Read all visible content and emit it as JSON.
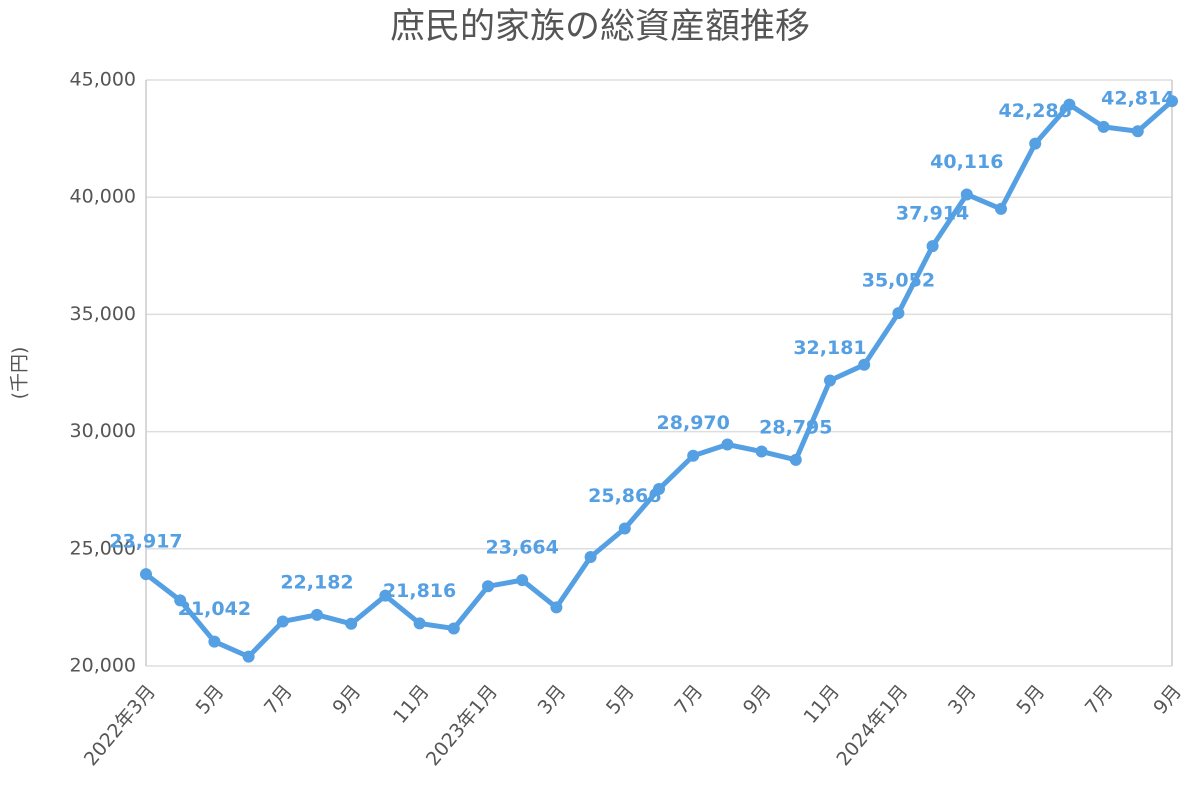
{
  "chart_data": {
    "type": "line",
    "title": "庶民的家族の総資産額推移",
    "y_label": "(千円)",
    "categories": [
      "2022年3月",
      null,
      "5月",
      null,
      "7月",
      null,
      "9月",
      null,
      "11月",
      null,
      "2023年1月",
      null,
      "3月",
      null,
      "5月",
      null,
      "7月",
      null,
      "9月",
      null,
      "11月",
      null,
      "2024年1月",
      null,
      "3月",
      null,
      "5月",
      null,
      "7月",
      null,
      "9月"
    ],
    "series": [
      {
        "name": "総資産額",
        "color": "#559fe3",
        "values": [
          23917,
          22800,
          21042,
          20400,
          21900,
          22182,
          21800,
          23000,
          21816,
          21600,
          23400,
          23664,
          22500,
          24650,
          25866,
          27550,
          28970,
          29450,
          29150,
          28795,
          32181,
          32850,
          35052,
          37914,
          40116,
          39500,
          42286,
          43950,
          43000,
          42814,
          44100
        ],
        "value_labels": [
          "23,917",
          null,
          "21,042",
          null,
          null,
          "22,182",
          null,
          null,
          "21,816",
          null,
          null,
          "23,664",
          null,
          null,
          "25,866",
          null,
          "28,970",
          null,
          null,
          "28,795",
          "32,181",
          null,
          "35,052",
          "37,914",
          "40,116",
          null,
          "42,286",
          null,
          null,
          "42,814",
          null
        ]
      }
    ],
    "ylim": [
      20000,
      45000
    ],
    "yticks": [
      {
        "value": 20000,
        "label": "20,000"
      },
      {
        "value": 25000,
        "label": "25,000"
      },
      {
        "value": 30000,
        "label": "30,000"
      },
      {
        "value": 35000,
        "label": "35,000"
      },
      {
        "value": 40000,
        "label": "40,000"
      },
      {
        "value": 45000,
        "label": "45,000"
      }
    ],
    "grid": true
  }
}
